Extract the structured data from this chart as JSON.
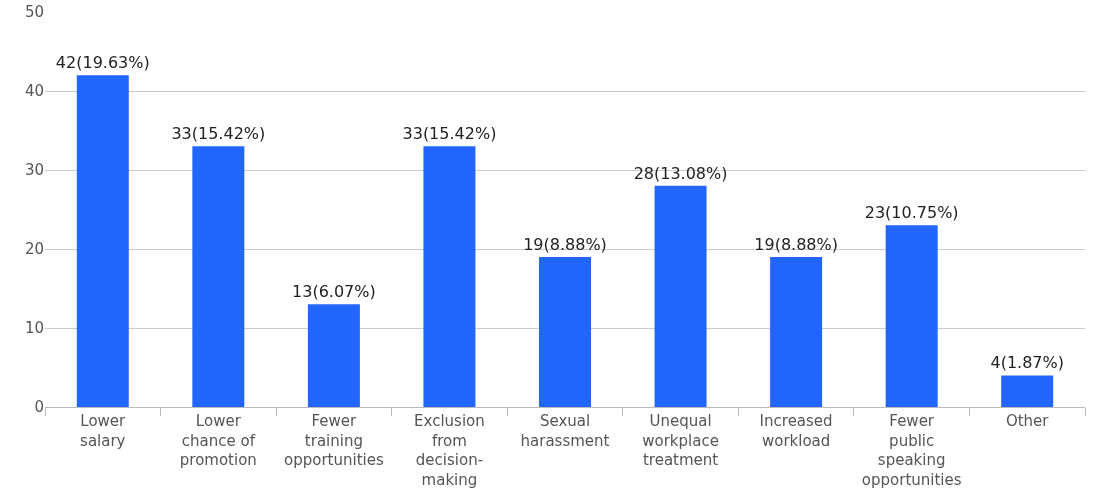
{
  "chart_data": {
    "type": "bar",
    "categories": [
      "Lower salary",
      "Lower chance of promotion",
      "Fewer training opportunities",
      "Exclusion from decision-making",
      "Sexual harassment",
      "Unequal workplace treatment",
      "Increased workload",
      "Fewer public speaking opportunities",
      "Other"
    ],
    "values": [
      42,
      33,
      13,
      33,
      19,
      28,
      19,
      23,
      4
    ],
    "value_labels": [
      "42(19.63%)",
      "33(15.42%)",
      "13(6.07%)",
      "33(15.42%)",
      "19(8.88%)",
      "28(13.08%)",
      "19(8.88%)",
      "23(10.75%)",
      "4(1.87%)"
    ],
    "color": "#2266ff",
    "ylim": [
      0,
      50
    ],
    "yticks": [
      0,
      10,
      20,
      30,
      40,
      50
    ],
    "grid": "y"
  }
}
